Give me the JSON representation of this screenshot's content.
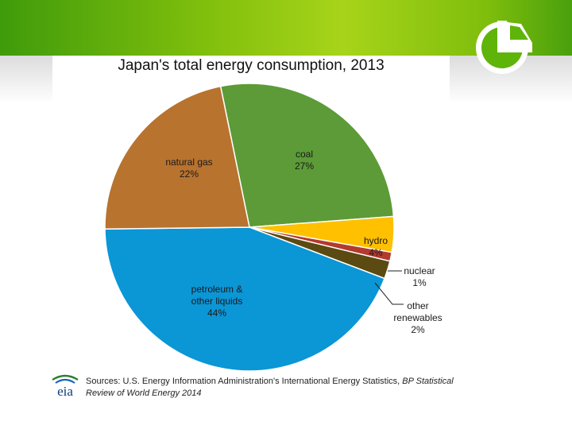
{
  "slide": {
    "logo_text": "eia",
    "source_text": "Sources: U.S. Energy Information Administration's International Energy Statistics, ",
    "source_italic": "BP Statistical Review of World Energy 2014"
  },
  "colors": {
    "banner": "#7fbe0c",
    "logo": "#5fb40a"
  },
  "chart_data": {
    "type": "pie",
    "title": "Japan's total energy consumption, 2013",
    "slices": [
      {
        "label": "coal",
        "value": 27,
        "value_label": "27%",
        "color": "#5c9b37"
      },
      {
        "label": "hydro",
        "value": 4,
        "value_label": "4%",
        "color": "#ffc000"
      },
      {
        "label": "nuclear",
        "value": 1,
        "value_label": "1%",
        "color": "#b23a2e"
      },
      {
        "label": "other renewables",
        "value": 2,
        "value_label": "2%",
        "color": "#5b4a12"
      },
      {
        "label": "petroleum & other liquids",
        "value": 44,
        "value_label": "44%",
        "color": "#0b96d6"
      },
      {
        "label": "natural gas",
        "value": 22,
        "value_label": "22%",
        "color": "#b8732f"
      }
    ]
  }
}
